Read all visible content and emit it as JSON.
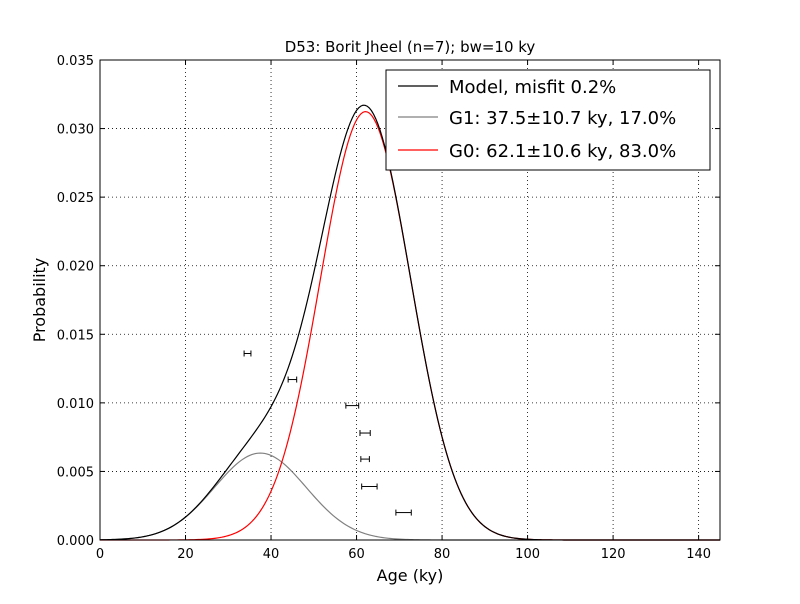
{
  "chart_data": {
    "type": "line",
    "title": "D53: Borit Jheel (n=7); bw=10 ky",
    "xlabel": "Age (ky)",
    "ylabel": "Probability",
    "xlim": [
      0,
      145
    ],
    "ylim": [
      0,
      0.035
    ],
    "xticks": [
      0,
      20,
      40,
      60,
      80,
      100,
      120,
      140
    ],
    "yticks": [
      0,
      0.005,
      0.01,
      0.015,
      0.02,
      0.025,
      0.03,
      0.035
    ],
    "xtick_labels": [
      "0",
      "20",
      "40",
      "60",
      "80",
      "100",
      "120",
      "140"
    ],
    "ytick_labels": [
      "0.000",
      "0.005",
      "0.010",
      "0.015",
      "0.020",
      "0.025",
      "0.030",
      "0.035"
    ],
    "grid": true,
    "legend_position": "top-right",
    "series": [
      {
        "name": "Model, misfit 0.2%",
        "color": "#000000",
        "kind": "sum"
      },
      {
        "name": "G1: 37.5±10.7 ky, 17.0%",
        "color": "#808080",
        "mu": 37.5,
        "sigma": 10.7,
        "weight": 0.17
      },
      {
        "name": "G0: 62.1±10.6 ky, 83.0%",
        "color": "#ff0000",
        "mu": 62.1,
        "sigma": 10.6,
        "weight": 0.83
      }
    ],
    "samples": [
      {
        "age": 34.5,
        "err": 0.8,
        "y": 0.0136
      },
      {
        "age": 45.0,
        "err": 1.0,
        "y": 0.0117
      },
      {
        "age": 59.0,
        "err": 1.5,
        "y": 0.0098
      },
      {
        "age": 62.0,
        "err": 1.2,
        "y": 0.0078
      },
      {
        "age": 62.0,
        "err": 1.0,
        "y": 0.0059
      },
      {
        "age": 63.0,
        "err": 1.8,
        "y": 0.0039
      },
      {
        "age": 71.0,
        "err": 1.8,
        "y": 0.002
      }
    ]
  }
}
